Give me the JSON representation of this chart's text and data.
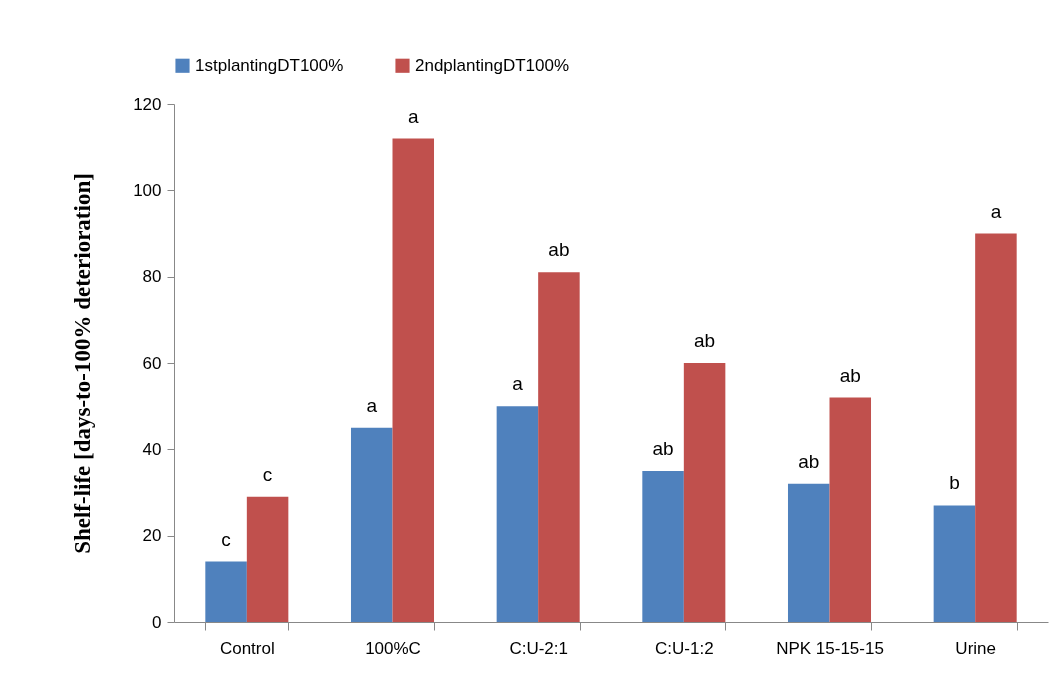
{
  "chart_data": {
    "type": "bar",
    "ylabel": "Shelf-life [days-to-100% deterioration]",
    "categories": [
      "Control",
      "100%C",
      "C:U-2:1",
      "C:U-1:2",
      "NPK 15-15-15",
      "Urine"
    ],
    "series": [
      {
        "name": "1stplantingDT100%",
        "color": "#4f81bd",
        "values": [
          14,
          45,
          50,
          35,
          32,
          27
        ],
        "value_labels": [
          "c",
          "a",
          "a",
          "ab",
          "ab",
          "b"
        ]
      },
      {
        "name": "2ndplantingDT100%",
        "color": "#c0504d",
        "values": [
          29,
          112,
          81,
          60,
          52,
          90
        ],
        "value_labels": [
          "c",
          "a",
          "ab",
          "ab",
          "ab",
          "a"
        ]
      }
    ],
    "ylim": [
      0,
      120
    ],
    "yticks": [
      0,
      20,
      40,
      60,
      80,
      100,
      120
    ],
    "grid": false,
    "legend": "top"
  }
}
